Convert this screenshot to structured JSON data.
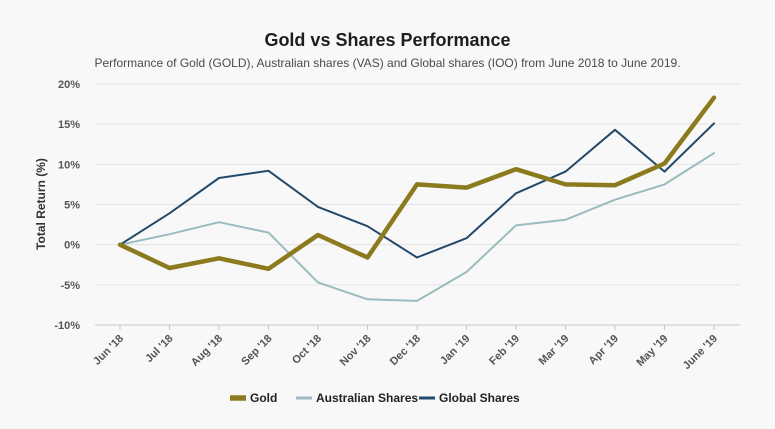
{
  "chart_data": {
    "type": "line",
    "title": "Gold vs Shares Performance",
    "subtitle": "Performance of Gold (GOLD), Australian shares (VAS) and Global shares (IOO) from June 2018 to June 2019.",
    "xlabel": "",
    "ylabel": "Total Return (%)",
    "ylim": [
      -10,
      20
    ],
    "yticks": [
      20,
      15,
      10,
      5,
      0,
      -5,
      -10
    ],
    "ytick_labels": [
      "20%",
      "15%",
      "10%",
      "5%",
      "0%",
      "-5%",
      "-10%"
    ],
    "categories": [
      "Jun '18",
      "Jul '18",
      "Aug '18",
      "Sep '18",
      "Oct '18",
      "Nov '18",
      "Dec '18",
      "Jan '19",
      "Feb '19",
      "Mar '19",
      "Apr '19",
      "May '19",
      "June '19"
    ],
    "grid": true,
    "legend_position": "bottom-center",
    "series": [
      {
        "name": "Gold",
        "color": "#8c7a1e",
        "values": [
          0,
          -2.9,
          -1.7,
          -3.0,
          1.2,
          -1.6,
          7.5,
          7.1,
          9.4,
          7.5,
          7.4,
          10.1,
          18.3
        ]
      },
      {
        "name": "Australian Shares",
        "color": "#9bbcbf",
        "values": [
          0,
          1.3,
          2.8,
          1.5,
          -4.7,
          -6.8,
          -7.0,
          -3.4,
          2.4,
          3.1,
          5.6,
          7.5,
          11.4
        ]
      },
      {
        "name": "Global Shares",
        "color": "#234a6b",
        "values": [
          0,
          3.9,
          8.3,
          9.2,
          4.7,
          2.3,
          -1.6,
          0.8,
          6.4,
          9.1,
          14.3,
          9.1,
          15.1
        ]
      }
    ]
  }
}
